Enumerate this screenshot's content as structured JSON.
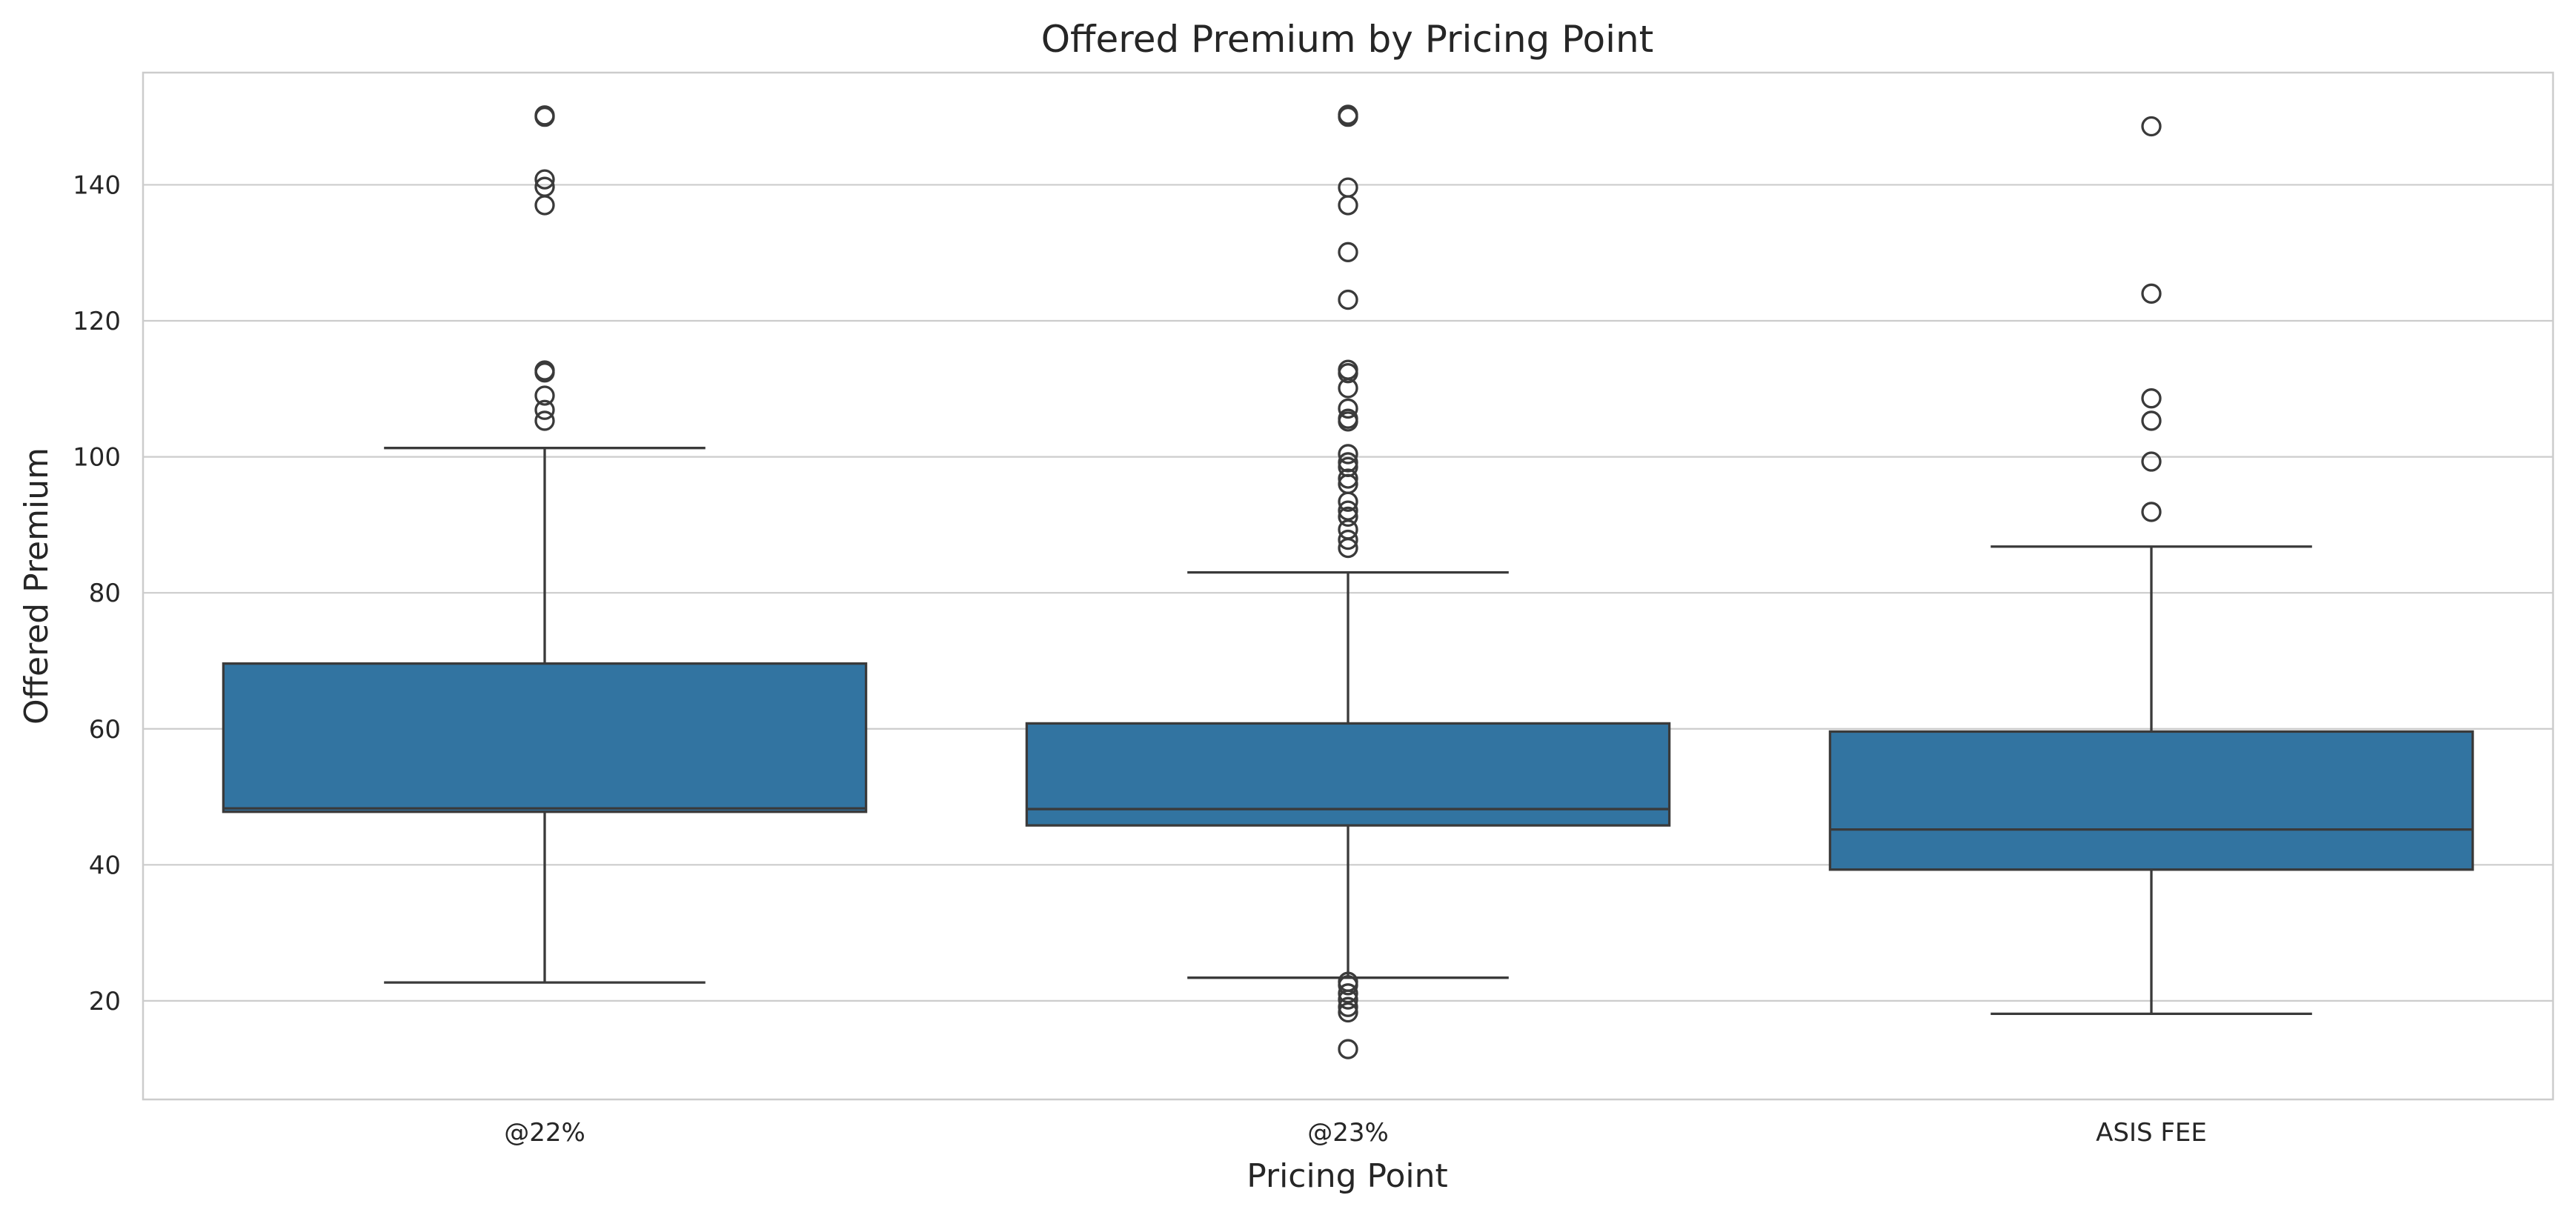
{
  "chart_data": {
    "type": "box",
    "title": "Offered Premium by Pricing Point",
    "xlabel": "Pricing Point",
    "ylabel": "Offered Premium",
    "ylim": [
      5.5,
      156.5
    ],
    "yticks": [
      20,
      40,
      60,
      80,
      100,
      120,
      140
    ],
    "grid": "horizontal",
    "box_color": "#3274a1",
    "line_color": "#3a3a3a",
    "categories": [
      "@22%",
      "@23%",
      "ASIS FEE"
    ],
    "boxes": [
      {
        "category": "@22%",
        "whisker_low": 22.7,
        "q1": 47.8,
        "median": 48.3,
        "q3": 69.6,
        "whisker_high": 101.3,
        "outliers": [
          105.3,
          106.9,
          109.0,
          112.4,
          112.7,
          137.0,
          139.7,
          140.8,
          150.0,
          150.2
        ]
      },
      {
        "category": "@23%",
        "whisker_low": 23.4,
        "q1": 45.8,
        "median": 48.2,
        "q3": 60.8,
        "whisker_high": 83.0,
        "outliers": [
          12.9,
          18.3,
          19.1,
          20.2,
          21.1,
          22.3,
          22.8,
          86.6,
          87.8,
          89.3,
          91.2,
          92.1,
          93.4,
          96.0,
          96.8,
          98.5,
          99.2,
          100.4,
          105.2,
          105.6,
          107.1,
          110.1,
          112.3,
          112.8,
          123.1,
          130.1,
          137.0,
          139.6,
          150.0,
          150.3
        ]
      },
      {
        "category": "ASIS FEE",
        "whisker_low": 18.1,
        "q1": 39.3,
        "median": 45.2,
        "q3": 59.6,
        "whisker_high": 86.8,
        "outliers": [
          91.9,
          99.3,
          105.3,
          108.6,
          124.0,
          148.6
        ]
      }
    ]
  }
}
